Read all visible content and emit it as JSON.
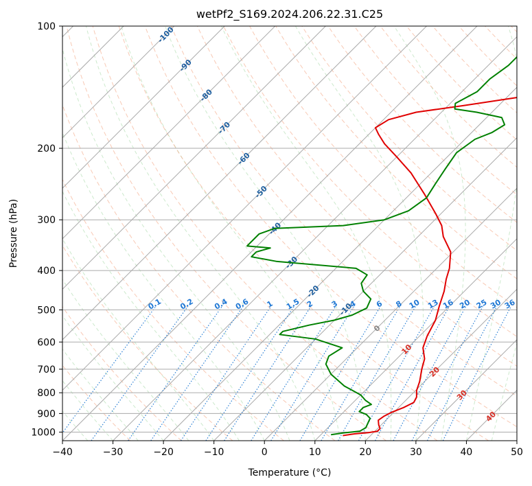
{
  "chart_data": {
    "type": "line",
    "title": "wetPf2_S169.2024.206.22.31.C25",
    "xlabel": "Temperature (°C)",
    "ylabel": "Pressure (hPa)",
    "xlim": [
      -40,
      50
    ],
    "ylim": [
      1050,
      100
    ],
    "y_scale": "log",
    "x_ticks": [
      -40,
      -30,
      -20,
      -10,
      0,
      10,
      20,
      30,
      40,
      50
    ],
    "y_ticks": [
      100,
      200,
      300,
      400,
      500,
      600,
      700,
      800,
      900,
      1000
    ],
    "grid": true,
    "skew": true,
    "series": [
      {
        "role": "temperature",
        "color": "#e00000",
        "points": [
          [
            14.5,
            1020
          ],
          [
            16.5,
            1010
          ],
          [
            19,
            1003
          ],
          [
            20.5,
            995
          ],
          [
            20.5,
            980
          ],
          [
            19.5,
            960
          ],
          [
            18.5,
            935
          ],
          [
            18.8,
            915
          ],
          [
            19.5,
            895
          ],
          [
            21,
            870
          ],
          [
            22,
            845
          ],
          [
            21.5,
            820
          ],
          [
            20.2,
            790
          ],
          [
            19,
            750
          ],
          [
            17,
            700
          ],
          [
            15.5,
            660
          ],
          [
            13,
            620
          ],
          [
            11.5,
            580
          ],
          [
            10,
            530
          ],
          [
            8,
            490
          ],
          [
            6,
            450
          ],
          [
            4,
            420
          ],
          [
            2.5,
            395
          ],
          [
            -0.5,
            360
          ],
          [
            -5,
            330
          ],
          [
            -7.5,
            310
          ],
          [
            -11,
            290
          ],
          [
            -17,
            260
          ],
          [
            -24,
            230
          ],
          [
            -30,
            210
          ],
          [
            -35,
            195
          ],
          [
            -38,
            185
          ],
          [
            -40,
            178
          ],
          [
            -39,
            170
          ],
          [
            -35,
            163
          ],
          [
            -27,
            157
          ],
          [
            -18,
            150
          ],
          [
            -15,
            142
          ],
          [
            -14,
            130
          ],
          [
            -13.5,
            120
          ],
          [
            -15,
            110
          ],
          [
            -17,
            100
          ]
        ]
      },
      {
        "role": "dewpoint",
        "color": "#008000",
        "points": [
          [
            12,
            1015
          ],
          [
            14,
            1005
          ],
          [
            17,
            995
          ],
          [
            17.5,
            975
          ],
          [
            17,
            950
          ],
          [
            16.5,
            925
          ],
          [
            15,
            905
          ],
          [
            13,
            890
          ],
          [
            13,
            870
          ],
          [
            14,
            855
          ],
          [
            12,
            835
          ],
          [
            10,
            810
          ],
          [
            5,
            770
          ],
          [
            0,
            720
          ],
          [
            -3,
            680
          ],
          [
            -4,
            650
          ],
          [
            -3,
            620
          ],
          [
            -10,
            590
          ],
          [
            -18,
            575
          ],
          [
            -18,
            565
          ],
          [
            -14,
            545
          ],
          [
            -10,
            530
          ],
          [
            -7.5,
            515
          ],
          [
            -6,
            495
          ],
          [
            -7,
            470
          ],
          [
            -10,
            450
          ],
          [
            -12,
            430
          ],
          [
            -12.5,
            410
          ],
          [
            -16,
            395
          ],
          [
            -33,
            380
          ],
          [
            -39,
            370
          ],
          [
            -39,
            360
          ],
          [
            -37,
            352
          ],
          [
            -42,
            348
          ],
          [
            -42,
            325
          ],
          [
            -40,
            315
          ],
          [
            -27,
            310
          ],
          [
            -20,
            300
          ],
          [
            -17,
            285
          ],
          [
            -16,
            265
          ],
          [
            -17,
            245
          ],
          [
            -18,
            225
          ],
          [
            -19,
            205
          ],
          [
            -18,
            190
          ],
          [
            -16,
            183
          ],
          [
            -15,
            175
          ],
          [
            -17,
            168
          ],
          [
            -23,
            163
          ],
          [
            -28,
            160
          ],
          [
            -29,
            155
          ],
          [
            -27,
            145
          ],
          [
            -27,
            135
          ],
          [
            -26,
            125
          ],
          [
            -26,
            115
          ],
          [
            -23,
            108
          ],
          [
            -21,
            100
          ]
        ]
      }
    ],
    "isotherm_labels": [
      "-100",
      "-90",
      "-80",
      "-70",
      "-60",
      "-50",
      "-40",
      "-30",
      "-20",
      "-10",
      "0",
      "10",
      "20",
      "30",
      "40"
    ],
    "mixing_ratio_labels": [
      "0.1",
      "0.2",
      "0.4",
      "0.6",
      "1",
      "1.5",
      "2",
      "3",
      "4",
      "6",
      "8",
      "10",
      "13",
      "16",
      "20",
      "25",
      "30",
      "36"
    ],
    "colors": {
      "isotherm": "#aaaaaa",
      "dry_adiabat": "#f4a582",
      "moist_adiabat": "#8fcf8f",
      "mixing_ratio": "#2a7fd4",
      "cold_label": "#1f5f9f",
      "warm_label": "#d73027",
      "zero_label": "#888888",
      "mixing_label": "#1f77d4"
    }
  }
}
